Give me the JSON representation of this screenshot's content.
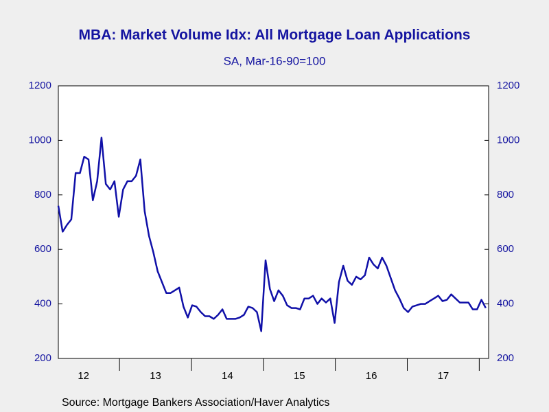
{
  "chart_data": {
    "type": "line",
    "title": "MBA: Market Volume Idx: All Mortgage Loan Applications",
    "subtitle": "SA, Mar-16-90=100",
    "source": "Source:  Mortgage Bankers Association/Haver Analytics",
    "x": [
      2012.15,
      2012.21,
      2012.27,
      2012.33,
      2012.39,
      2012.45,
      2012.51,
      2012.57,
      2012.63,
      2012.69,
      2012.75,
      2012.81,
      2012.87,
      2012.93,
      2012.99,
      2013.05,
      2013.11,
      2013.17,
      2013.23,
      2013.29,
      2013.35,
      2013.41,
      2013.47,
      2013.53,
      2013.59,
      2013.65,
      2013.71,
      2013.77,
      2013.83,
      2013.89,
      2013.95,
      2014.01,
      2014.07,
      2014.13,
      2014.19,
      2014.25,
      2014.31,
      2014.37,
      2014.43,
      2014.49,
      2014.55,
      2014.61,
      2014.67,
      2014.73,
      2014.79,
      2014.85,
      2014.91,
      2014.97,
      2015.03,
      2015.09,
      2015.15,
      2015.21,
      2015.27,
      2015.33,
      2015.39,
      2015.45,
      2015.51,
      2015.57,
      2015.63,
      2015.69,
      2015.75,
      2015.81,
      2015.87,
      2015.93,
      2015.99,
      2016.05,
      2016.11,
      2016.17,
      2016.23,
      2016.29,
      2016.35,
      2016.41,
      2016.47,
      2016.53,
      2016.59,
      2016.65,
      2016.71,
      2016.77,
      2016.83,
      2016.89,
      2016.95,
      2017.01,
      2017.07,
      2017.13,
      2017.19,
      2017.25,
      2017.31,
      2017.37,
      2017.43,
      2017.49,
      2017.55,
      2017.61,
      2017.67,
      2017.73,
      2017.79,
      2017.85,
      2017.91,
      2017.97,
      2018.03,
      2018.09
    ],
    "series": [
      {
        "name": "MBA: Market Volume Idx: All Mortgage Loan Applications",
        "color": "#1010a8",
        "values": [
          760,
          665,
          690,
          710,
          880,
          880,
          940,
          930,
          780,
          850,
          1010,
          840,
          820,
          850,
          720,
          820,
          850,
          850,
          870,
          930,
          740,
          650,
          590,
          520,
          480,
          440,
          440,
          450,
          460,
          390,
          350,
          395,
          390,
          370,
          355,
          355,
          345,
          360,
          380,
          345,
          345,
          345,
          350,
          360,
          390,
          385,
          370,
          300,
          560,
          455,
          410,
          450,
          430,
          395,
          385,
          385,
          380,
          420,
          420,
          430,
          400,
          420,
          405,
          420,
          330,
          480,
          540,
          485,
          470,
          500,
          490,
          505,
          570,
          545,
          530,
          570,
          540,
          495,
          450,
          420,
          385,
          370,
          390,
          395,
          400,
          400,
          410,
          420,
          430,
          410,
          415,
          435,
          420,
          405,
          405,
          405,
          380,
          380,
          415,
          385
        ]
      }
    ],
    "xlim": [
      2012.15,
      2018.13
    ],
    "xticks": [
      {
        "value": 2012.5,
        "label": "12"
      },
      {
        "value": 2013.5,
        "label": "13"
      },
      {
        "value": 2014.5,
        "label": "14"
      },
      {
        "value": 2015.5,
        "label": "15"
      },
      {
        "value": 2016.5,
        "label": "16"
      },
      {
        "value": 2017.5,
        "label": "17"
      }
    ],
    "ylim": [
      200,
      1200
    ],
    "yticks": [
      200,
      400,
      600,
      800,
      1000,
      1200
    ],
    "y2lim": [
      200,
      1200
    ],
    "y2ticks": [
      200,
      400,
      600,
      800,
      1000,
      1200
    ]
  }
}
